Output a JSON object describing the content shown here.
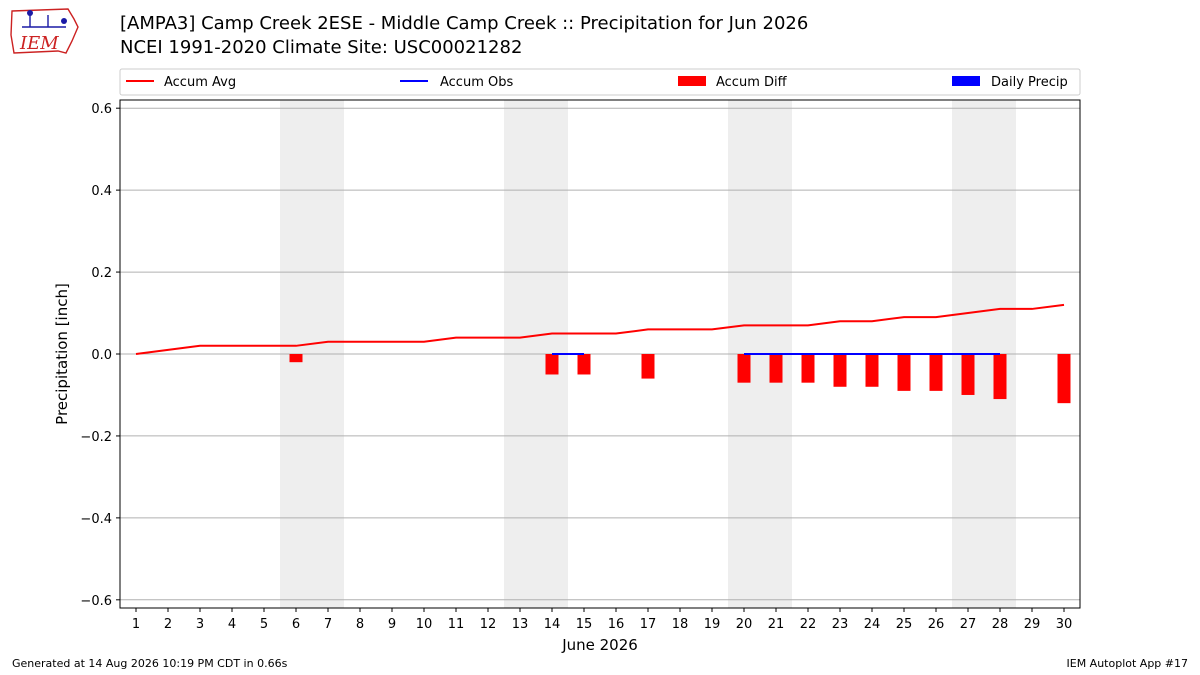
{
  "header": {
    "logo_text": "IEM",
    "title_line1": "[AMPA3] Camp Creek 2ESE - Middle Camp Creek :: Precipitation for Jun 2026",
    "title_line2": "NCEI 1991-2020 Climate Site: USC00021282"
  },
  "footer": {
    "left": "Generated at 14 Aug 2026 10:19 PM CDT in 0.66s",
    "right": "IEM Autoplot App #17"
  },
  "colors": {
    "accum_avg": "#ff0000",
    "accum_obs": "#0000ff",
    "accum_diff": "#ff0000",
    "daily_precip": "#0000ff",
    "weekend_shade": "#eeeeee",
    "grid": "#b0b0b0",
    "logo_red": "#cc2222",
    "logo_blue": "#1a1aa6"
  },
  "chart_data": {
    "type": "bar",
    "xlabel": "June 2026",
    "ylabel": "Precipitation [inch]",
    "ylim": [
      -0.62,
      0.62
    ],
    "yticks": [
      -0.6,
      -0.4,
      -0.2,
      0.0,
      0.2,
      0.4,
      0.6
    ],
    "ytick_labels": [
      "−0.6",
      "−0.4",
      "−0.2",
      "0.0",
      "0.2",
      "0.4",
      "0.6"
    ],
    "xlim": [
      0.5,
      30.5
    ],
    "x": [
      1,
      2,
      3,
      4,
      5,
      6,
      7,
      8,
      9,
      10,
      11,
      12,
      13,
      14,
      15,
      16,
      17,
      18,
      19,
      20,
      21,
      22,
      23,
      24,
      25,
      26,
      27,
      28,
      29,
      30
    ],
    "weekends": [
      [
        6,
        7
      ],
      [
        13,
        14
      ],
      [
        20,
        21
      ],
      [
        27,
        28
      ]
    ],
    "grid": "horizontal",
    "legend": {
      "placement": "top",
      "entries": [
        {
          "label": "Accum Avg",
          "kind": "line",
          "color": "#ff0000"
        },
        {
          "label": "Accum Obs",
          "kind": "line",
          "color": "#0000ff"
        },
        {
          "label": "Accum Diff",
          "kind": "bar",
          "color": "#ff0000"
        },
        {
          "label": "Daily Precip",
          "kind": "bar",
          "color": "#0000ff"
        }
      ]
    },
    "series": [
      {
        "name": "Accum Avg",
        "type": "line",
        "x": [
          1,
          2,
          3,
          4,
          5,
          6,
          7,
          8,
          9,
          10,
          11,
          12,
          13,
          14,
          15,
          16,
          17,
          18,
          19,
          20,
          21,
          22,
          23,
          24,
          25,
          26,
          27,
          28,
          29,
          30
        ],
        "values": [
          0.0,
          0.01,
          0.02,
          0.02,
          0.02,
          0.02,
          0.03,
          0.03,
          0.03,
          0.03,
          0.04,
          0.04,
          0.04,
          0.05,
          0.05,
          0.05,
          0.06,
          0.06,
          0.06,
          0.07,
          0.07,
          0.07,
          0.08,
          0.08,
          0.09,
          0.09,
          0.1,
          0.11,
          0.11,
          0.12
        ]
      },
      {
        "name": "Accum Obs",
        "type": "line",
        "segments": [
          {
            "x": [
              14,
              15
            ],
            "values": [
              0.0,
              0.0
            ]
          },
          {
            "x": [
              20,
              21,
              22,
              23,
              24,
              25,
              26,
              27,
              28
            ],
            "values": [
              0.0,
              0.0,
              0.0,
              0.0,
              0.0,
              0.0,
              0.0,
              0.0,
              0.0
            ]
          }
        ]
      },
      {
        "name": "Accum Diff",
        "type": "bar",
        "x": [
          6,
          14,
          15,
          17,
          20,
          21,
          22,
          23,
          24,
          25,
          26,
          27,
          28,
          30
        ],
        "values": [
          -0.02,
          -0.05,
          -0.05,
          -0.06,
          -0.07,
          -0.07,
          -0.07,
          -0.08,
          -0.08,
          -0.09,
          -0.09,
          -0.1,
          -0.11,
          -0.12
        ]
      },
      {
        "name": "Daily Precip",
        "type": "bar",
        "x": [],
        "values": []
      }
    ]
  }
}
